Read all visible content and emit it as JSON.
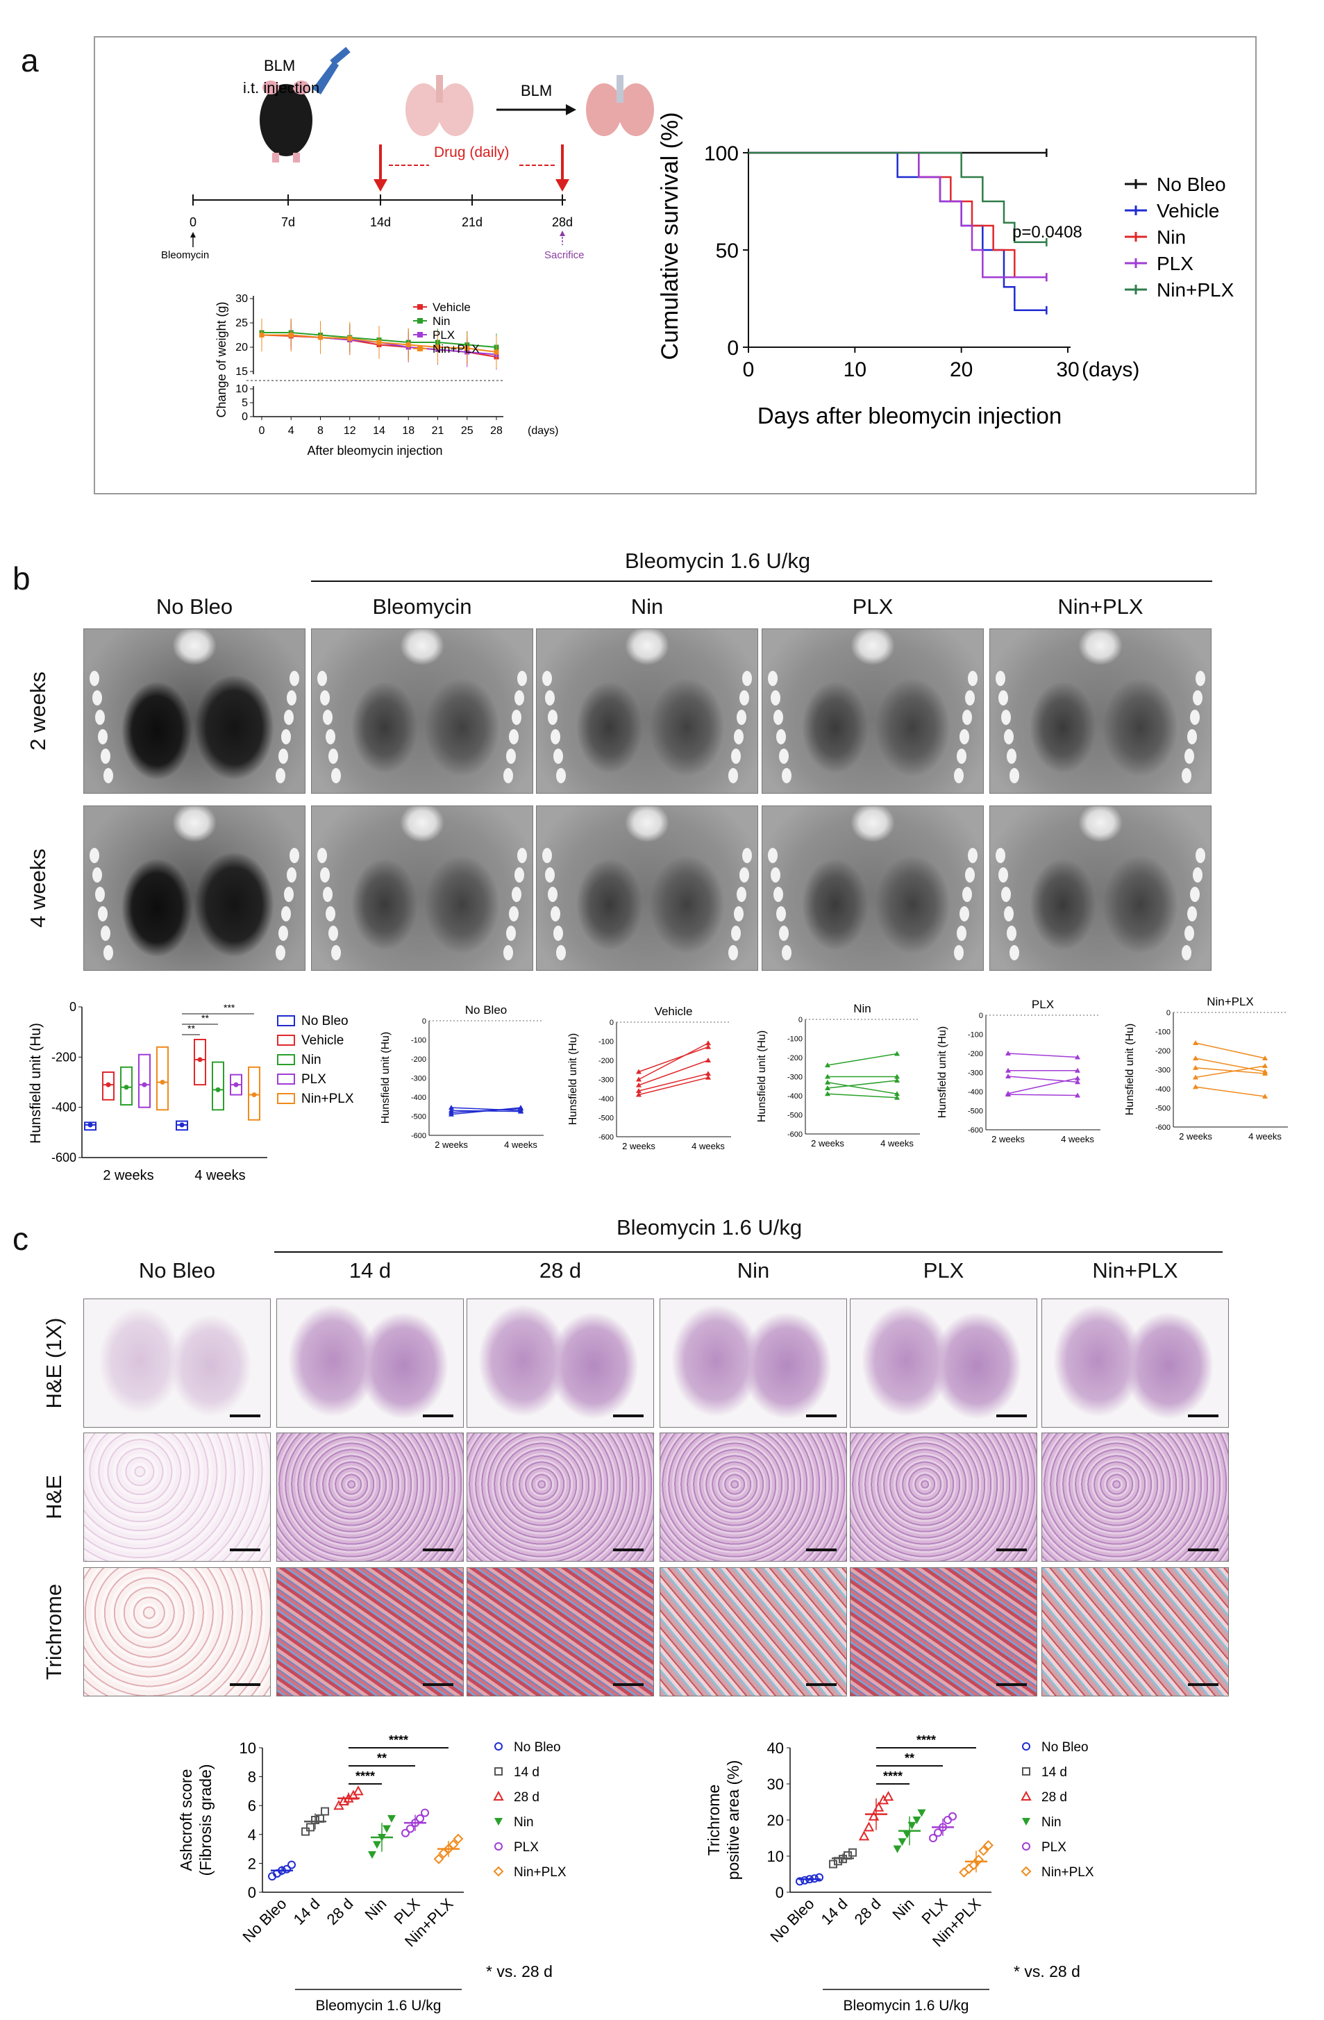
{
  "panels": {
    "a": "a",
    "b": "b",
    "c": "c"
  },
  "panel_a": {
    "schematic": {
      "injection_label_1": "BLM",
      "injection_label_2": "i.t. injection",
      "blm_arrow_label": "BLM",
      "drug_label": "Drug (daily)",
      "timeline_ticks": [
        "0",
        "7d",
        "14d",
        "21d",
        "28d"
      ],
      "start_label": "Bleomycin",
      "end_label": "Sacrifice",
      "drug_color": "#d8201f",
      "sacrifice_color": "#8a3fa0"
    },
    "weight_chart": {
      "ylabel": "Change of weight (g)",
      "xlabel": "After bleomycin injection",
      "x_unit": "(days)",
      "yticks_upper": [
        "30",
        "25",
        "20",
        "15"
      ],
      "yticks_lower": [
        "10",
        "5",
        "0"
      ],
      "xticks": [
        "0",
        "4",
        "8",
        "12",
        "14",
        "18",
        "21",
        "25",
        "28"
      ],
      "legend": [
        "Vehicle",
        "Nin",
        "PLX",
        "Nin+PLX"
      ]
    },
    "survival_chart": {
      "ylabel": "Cumulative survival (%)",
      "xlabel": "Days after bleomycin injection",
      "x_unit": "(days)",
      "xticks": [
        "0",
        "10",
        "20",
        "30"
      ],
      "yticks": [
        "0",
        "50",
        "100"
      ],
      "pvalue": "p=0.0408",
      "legend": [
        "No Bleo",
        "Vehicle",
        "Nin",
        "PLX",
        "Nin+PLX"
      ]
    }
  },
  "panel_b": {
    "group_header": "Bleomycin 1.6 U/kg",
    "columns": [
      "No Bleo",
      "Bleomycin",
      "Nin",
      "PLX",
      "Nin+PLX"
    ],
    "rows": [
      "2 weeks",
      "4 weeks"
    ],
    "box_chart": {
      "ylabel": "Hunsfield unit (Hu)",
      "yticks": [
        "0",
        "-200",
        "-400",
        "-600"
      ],
      "groups": [
        "2 weeks",
        "4 weeks"
      ],
      "legend": [
        "No Bleo",
        "Vehicle",
        "Nin",
        "PLX",
        "Nin+PLX"
      ],
      "sig": [
        "***",
        "**",
        "**"
      ]
    },
    "paired_charts": {
      "ylabel": "Hunsfield unit (Hu)",
      "yticks": [
        "0",
        "-100",
        "-200",
        "-300",
        "-400",
        "-500",
        "-600"
      ],
      "xticks": [
        "2 weeks",
        "4 weeks"
      ],
      "titles": [
        "No  Bleo",
        "Vehicle",
        "Nin",
        "PLX",
        "Nin+PLX"
      ]
    }
  },
  "panel_c": {
    "group_header": "Bleomycin 1.6 U/kg",
    "columns": [
      "No Bleo",
      "14 d",
      "28 d",
      "Nin",
      "PLX",
      "Nin+PLX"
    ],
    "rows": [
      "H&E (1X)",
      "H&E",
      "Trichrome"
    ],
    "ashcroft": {
      "ylabel_1": "Ashcroft score",
      "ylabel_2": "(Fibrosis grade)",
      "yticks": [
        "0",
        "2",
        "4",
        "6",
        "8",
        "10"
      ],
      "sig": [
        "****",
        "**",
        "****"
      ],
      "footnote": "* vs. 28 d",
      "group_label": "Bleomycin 1.6  U/kg"
    },
    "trichrome": {
      "ylabel_1": "Trichrome",
      "ylabel_2": "positive area (%)",
      "yticks": [
        "0",
        "10",
        "20",
        "30",
        "40"
      ],
      "sig": [
        "****",
        "**",
        "****"
      ],
      "footnote": "* vs. 28 d",
      "group_label": "Bleomycin 1.6  U/kg"
    },
    "legend": [
      "No Bleo",
      "14 d",
      "28 d",
      "Nin",
      "PLX",
      "Nin+PLX"
    ],
    "xlabels": [
      "No Bleo",
      "14 d",
      "28 d",
      "Nin",
      "PLX",
      "Nin+PLX"
    ]
  },
  "colors": {
    "no_bleo": "#1f2bd1",
    "vehicle": "#e0282b",
    "nin": "#2aa02a",
    "plx": "#a13bd6",
    "nin_plx": "#f08a1c",
    "black": "#111111",
    "survival_nin_plx": "#2f7d4a",
    "d14": "#555555"
  },
  "chart_data": [
    {
      "type": "line",
      "title": "",
      "xlabel": "After bleomycin injection",
      "ylabel": "Change of weight (g)",
      "x": [
        0,
        4,
        8,
        12,
        14,
        18,
        21,
        25,
        28
      ],
      "ylim": [
        0,
        30
      ],
      "series": [
        {
          "name": "Vehicle",
          "values": [
            22.5,
            22.3,
            22,
            21.5,
            20.5,
            20,
            19.5,
            19,
            18
          ]
        },
        {
          "name": "Nin",
          "values": [
            23,
            23,
            22.5,
            22,
            21.5,
            21,
            21,
            20.5,
            20
          ]
        },
        {
          "name": "PLX",
          "values": [
            22.5,
            22.5,
            22,
            21.5,
            21,
            20,
            19.5,
            19,
            18.5
          ]
        },
        {
          "name": "Nin+PLX",
          "values": [
            22.5,
            22.5,
            22,
            21.8,
            21,
            20.5,
            20,
            19.8,
            19
          ]
        }
      ]
    },
    {
      "type": "line",
      "title": "",
      "xlabel": "Days after bleomycin injection",
      "ylabel": "Cumulative survival (%)",
      "xlim": [
        0,
        30
      ],
      "ylim": [
        0,
        100
      ],
      "series": [
        {
          "name": "No Bleo",
          "points": [
            [
              0,
              100
            ],
            [
              28,
              100
            ]
          ]
        },
        {
          "name": "Vehicle",
          "points": [
            [
              0,
              100
            ],
            [
              14,
              100
            ],
            [
              14,
              87.5
            ],
            [
              18,
              87.5
            ],
            [
              18,
              75
            ],
            [
              20,
              75
            ],
            [
              20,
              62.5
            ],
            [
              22,
              62.5
            ],
            [
              22,
              50
            ],
            [
              24,
              50
            ],
            [
              24,
              31
            ],
            [
              25,
              31
            ],
            [
              25,
              19
            ],
            [
              28,
              19
            ]
          ]
        },
        {
          "name": "Nin",
          "points": [
            [
              0,
              100
            ],
            [
              16,
              100
            ],
            [
              16,
              87.5
            ],
            [
              19,
              87.5
            ],
            [
              19,
              75
            ],
            [
              21,
              75
            ],
            [
              21,
              62.5
            ],
            [
              23,
              62.5
            ],
            [
              23,
              50
            ],
            [
              25,
              50
            ],
            [
              25,
              36
            ],
            [
              28,
              36
            ]
          ]
        },
        {
          "name": "PLX",
          "points": [
            [
              0,
              100
            ],
            [
              16,
              100
            ],
            [
              16,
              87.5
            ],
            [
              18,
              87.5
            ],
            [
              18,
              75
            ],
            [
              20,
              75
            ],
            [
              20,
              62.5
            ],
            [
              21,
              62.5
            ],
            [
              21,
              50
            ],
            [
              22,
              50
            ],
            [
              22,
              36
            ],
            [
              28,
              36
            ]
          ]
        },
        {
          "name": "Nin+PLX",
          "points": [
            [
              0,
              100
            ],
            [
              20,
              100
            ],
            [
              20,
              87.5
            ],
            [
              22,
              87.5
            ],
            [
              22,
              75
            ],
            [
              24,
              75
            ],
            [
              24,
              64
            ],
            [
              25,
              64
            ],
            [
              25,
              54
            ],
            [
              28,
              54
            ]
          ]
        }
      ]
    },
    {
      "type": "box",
      "title": "",
      "ylabel": "Hunsfield unit (Hu)",
      "categories": [
        "2 weeks",
        "4 weeks"
      ],
      "ylim": [
        -600,
        0
      ],
      "series": [
        {
          "name": "No Bleo",
          "values": [
            [
              -490,
              -470,
              -460
            ],
            [
              -490,
              -470,
              -455
            ]
          ]
        },
        {
          "name": "Vehicle",
          "values": [
            [
              -370,
              -310,
              -260
            ],
            [
              -310,
              -210,
              -130
            ]
          ]
        },
        {
          "name": "Nin",
          "values": [
            [
              -390,
              -320,
              -240
            ],
            [
              -410,
              -330,
              -220
            ]
          ]
        },
        {
          "name": "PLX",
          "values": [
            [
              -400,
              -310,
              -190
            ],
            [
              -350,
              -310,
              -270
            ]
          ]
        },
        {
          "name": "Nin+PLX",
          "values": [
            [
              -410,
              -300,
              -160
            ],
            [
              -450,
              -350,
              -240
            ]
          ]
        }
      ]
    },
    {
      "type": "line",
      "title": "No  Bleo",
      "ylabel": "Hunsfield unit (Hu)",
      "categories": [
        "2 weeks",
        "4 weeks"
      ],
      "ylim": [
        -600,
        0
      ],
      "series": [
        {
          "values": [
            -480,
            -460
          ]
        },
        {
          "values": [
            -470,
            -475
          ]
        },
        {
          "values": [
            -455,
            -470
          ]
        },
        {
          "values": [
            -490,
            -455
          ]
        }
      ]
    },
    {
      "type": "line",
      "title": "Vehicle",
      "ylabel": "Hunsfield unit (Hu)",
      "categories": [
        "2 weeks",
        "4 weeks"
      ],
      "ylim": [
        -600,
        0
      ],
      "series": [
        {
          "values": [
            -260,
            -130
          ]
        },
        {
          "values": [
            -300,
            -110
          ]
        },
        {
          "values": [
            -330,
            -200
          ]
        },
        {
          "values": [
            -360,
            -270
          ]
        },
        {
          "values": [
            -380,
            -290
          ]
        }
      ]
    },
    {
      "type": "line",
      "title": "Nin",
      "ylabel": "Hunsfield unit (Hu)",
      "categories": [
        "2 weeks",
        "4 weeks"
      ],
      "ylim": [
        -600,
        0
      ],
      "series": [
        {
          "values": [
            -240,
            -180
          ]
        },
        {
          "values": [
            -300,
            -300
          ]
        },
        {
          "values": [
            -330,
            -390
          ]
        },
        {
          "values": [
            -360,
            -320
          ]
        },
        {
          "values": [
            -390,
            -410
          ]
        }
      ]
    },
    {
      "type": "line",
      "title": "PLX",
      "ylabel": "Hunsfield unit (Hu)",
      "categories": [
        "2 weeks",
        "4 weeks"
      ],
      "ylim": [
        -600,
        0
      ],
      "series": [
        {
          "values": [
            -200,
            -220
          ]
        },
        {
          "values": [
            -290,
            -290
          ]
        },
        {
          "values": [
            -320,
            -350
          ]
        },
        {
          "values": [
            -410,
            -330
          ]
        },
        {
          "values": [
            -415,
            -420
          ]
        }
      ]
    },
    {
      "type": "line",
      "title": "Nin+PLX",
      "ylabel": "Hunsfield unit (Hu)",
      "categories": [
        "2 weeks",
        "4 weeks"
      ],
      "ylim": [
        -600,
        0
      ],
      "series": [
        {
          "values": [
            -160,
            -240
          ]
        },
        {
          "values": [
            -240,
            -310
          ]
        },
        {
          "values": [
            -290,
            -320
          ]
        },
        {
          "values": [
            -340,
            -280
          ]
        },
        {
          "values": [
            -390,
            -440
          ]
        }
      ]
    },
    {
      "type": "scatter",
      "title": "",
      "ylabel": "Ashcroft score (Fibrosis grade)",
      "categories": [
        "No Bleo",
        "14 d",
        "28 d",
        "Nin",
        "PLX",
        "Nin+PLX"
      ],
      "ylim": [
        0,
        10
      ],
      "series": [
        {
          "name": "No Bleo",
          "values": [
            1.1,
            1.3,
            1.5,
            1.6,
            1.9
          ],
          "mean": 1.5
        },
        {
          "name": "14 d",
          "values": [
            4.2,
            4.5,
            5.0,
            5.1,
            5.6
          ],
          "mean": 4.9
        },
        {
          "name": "28 d",
          "values": [
            6.0,
            6.3,
            6.5,
            6.7,
            7.0
          ],
          "mean": 6.5
        },
        {
          "name": "Nin",
          "values": [
            2.6,
            3.3,
            3.8,
            4.4,
            5.1
          ],
          "mean": 3.8
        },
        {
          "name": "PLX",
          "values": [
            4.1,
            4.4,
            4.8,
            5.1,
            5.5
          ],
          "mean": 4.8
        },
        {
          "name": "Nin+PLX",
          "values": [
            2.3,
            2.7,
            3.0,
            3.3,
            3.7
          ],
          "mean": 3.0
        }
      ]
    },
    {
      "type": "scatter",
      "title": "",
      "ylabel": "Trichrome positive area (%)",
      "categories": [
        "No Bleo",
        "14 d",
        "28 d",
        "Nin",
        "PLX",
        "Nin+PLX"
      ],
      "ylim": [
        0,
        40
      ],
      "series": [
        {
          "name": "No Bleo",
          "values": [
            3.0,
            3.3,
            3.6,
            3.8,
            4.1
          ],
          "mean": 3.6
        },
        {
          "name": "14 d",
          "values": [
            7.8,
            8.6,
            9.2,
            10.2,
            11.0
          ],
          "mean": 9.4
        },
        {
          "name": "28 d",
          "values": [
            15.5,
            18.0,
            21.0,
            23.5,
            25.5,
            26.5
          ],
          "mean": 21.6
        },
        {
          "name": "Nin",
          "values": [
            12.0,
            14.0,
            16.0,
            18.5,
            20.0,
            22.0
          ],
          "mean": 17.0
        },
        {
          "name": "PLX",
          "values": [
            15.0,
            16.5,
            18.0,
            20.0,
            21.0
          ],
          "mean": 18.0
        },
        {
          "name": "Nin+PLX",
          "values": [
            5.5,
            6.5,
            7.5,
            9.0,
            11.5,
            13.0
          ],
          "mean": 8.5
        }
      ]
    }
  ]
}
